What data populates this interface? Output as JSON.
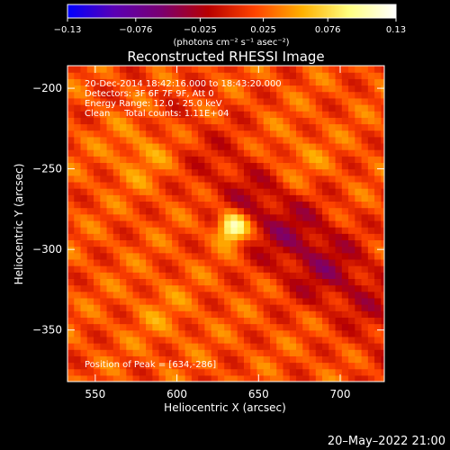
{
  "chart_data": {
    "type": "heatmap",
    "title": "Reconstructed RHESSI Image",
    "xlabel": "Heliocentric X (arcsec)",
    "ylabel": "Heliocentric Y (arcsec)",
    "xlim": [
      533,
      727
    ],
    "ylim": [
      -382,
      -186
    ],
    "x_ticks": [
      {
        "value": 550,
        "label": "550"
      },
      {
        "value": 600,
        "label": "600"
      },
      {
        "value": 650,
        "label": "650"
      },
      {
        "value": 700,
        "label": "700"
      }
    ],
    "y_ticks": [
      {
        "value": -200,
        "label": "−200"
      },
      {
        "value": -250,
        "label": "−250"
      },
      {
        "value": -300,
        "label": "−300"
      },
      {
        "value": -350,
        "label": "−350"
      }
    ],
    "colorbar": {
      "range": [
        -0.13,
        0.13
      ],
      "tick_values": [
        -0.13,
        -0.076,
        -0.025,
        0.025,
        0.076,
        0.13
      ],
      "tick_labels": [
        "−0.13",
        "−0.076",
        "−0.025",
        "0.025",
        "0.076",
        "0.13"
      ],
      "units_label": "(photons cm⁻² s⁻¹ asec⁻²)",
      "colors": [
        "#0000ff",
        "#5a00b4",
        "#7a0070",
        "#b80000",
        "#ff4400",
        "#ffb000",
        "#ffff80",
        "#ffffff"
      ]
    },
    "annotations": [
      "20-Dec-2014 18:42:16.000 to 18:43:20.000",
      "Detectors: 3F 6F 7F 9F, Att 0",
      "Energy Range: 12.0 - 25.0 keV",
      "Clean     Total counts: 1.11E+04"
    ],
    "peak_label": "Position of Peak = [634,-286]",
    "peak": {
      "x": 634,
      "y": -286,
      "value": 0.13
    },
    "background_level": 0.02,
    "secondary_sources": [
      {
        "x": 578,
        "y": -240,
        "value": 0.045
      },
      {
        "x": 672,
        "y": -245,
        "value": 0.04
      },
      {
        "x": 590,
        "y": -340,
        "value": 0.035
      },
      {
        "x": 700,
        "y": -345,
        "value": 0.03
      }
    ],
    "negative_region": {
      "x": 680,
      "y": -300,
      "value": -0.03
    }
  },
  "footer_date": "20–May–2022 21:00"
}
